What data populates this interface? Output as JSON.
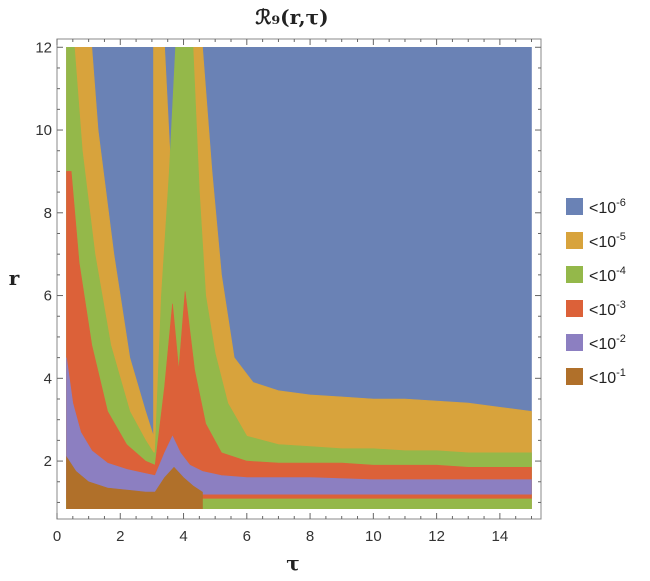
{
  "chart_data": {
    "type": "heatmap",
    "title": "ℛ₉(r,τ)",
    "xlabel": "τ",
    "ylabel": "r",
    "xlim": [
      0,
      15.3
    ],
    "ylim": [
      0.6,
      12.2
    ],
    "x_ticks": [
      0,
      2,
      4,
      6,
      8,
      10,
      12,
      14
    ],
    "y_ticks": [
      2,
      4,
      6,
      8,
      10,
      12
    ],
    "legend_position": "right",
    "legend": [
      {
        "base": "<10",
        "exp": "-6",
        "color": "#6a82b5"
      },
      {
        "base": "<10",
        "exp": "-5",
        "color": "#d8a33c"
      },
      {
        "base": "<10",
        "exp": "-4",
        "color": "#94b84a"
      },
      {
        "base": "<10",
        "exp": "-3",
        "color": "#dc6139"
      },
      {
        "base": "<10",
        "exp": "-2",
        "color": "#8c7fc1"
      },
      {
        "base": "<10",
        "exp": "-1",
        "color": "#b0702a"
      }
    ],
    "regions": [
      {
        "level": 0,
        "points": [
          [
            0.3,
            12
          ],
          [
            15,
            12
          ],
          [
            15,
            0.85
          ],
          [
            0.3,
            0.85
          ]
        ]
      },
      {
        "level": 1,
        "points": [
          [
            0.3,
            12
          ],
          [
            1.1,
            12
          ],
          [
            1.3,
            10
          ],
          [
            1.8,
            7
          ],
          [
            2.3,
            4.5
          ],
          [
            2.8,
            3.2
          ],
          [
            3.05,
            2.6
          ],
          [
            3.05,
            12
          ],
          [
            3.4,
            12
          ],
          [
            3.6,
            9
          ],
          [
            3.8,
            12
          ],
          [
            4.6,
            12
          ],
          [
            4.9,
            9
          ],
          [
            5.2,
            6.5
          ],
          [
            5.6,
            4.5
          ],
          [
            6.2,
            3.9
          ],
          [
            7,
            3.7
          ],
          [
            8,
            3.6
          ],
          [
            9,
            3.55
          ],
          [
            10,
            3.5
          ],
          [
            11,
            3.5
          ],
          [
            12,
            3.45
          ],
          [
            13,
            3.4
          ],
          [
            14,
            3.3
          ],
          [
            15,
            3.2
          ],
          [
            15,
            0.85
          ],
          [
            0.3,
            0.85
          ]
        ]
      },
      {
        "level": 2,
        "points": [
          [
            0.3,
            12
          ],
          [
            0.55,
            12
          ],
          [
            0.8,
            9.5
          ],
          [
            1.2,
            7
          ],
          [
            1.7,
            4.8
          ],
          [
            2.3,
            3.2
          ],
          [
            2.8,
            2.5
          ],
          [
            3.05,
            2.2
          ],
          [
            3.1,
            2.2
          ],
          [
            3.3,
            6
          ],
          [
            3.55,
            9
          ],
          [
            3.75,
            12
          ],
          [
            4.3,
            12
          ],
          [
            4.5,
            8.5
          ],
          [
            4.7,
            6
          ],
          [
            5,
            4.6
          ],
          [
            5.4,
            3.4
          ],
          [
            6,
            2.6
          ],
          [
            7,
            2.4
          ],
          [
            8,
            2.35
          ],
          [
            9,
            2.3
          ],
          [
            10,
            2.3
          ],
          [
            11,
            2.25
          ],
          [
            12,
            2.25
          ],
          [
            13,
            2.2
          ],
          [
            14,
            2.2
          ],
          [
            15,
            2.2
          ],
          [
            15,
            0.85
          ],
          [
            0.3,
            0.85
          ]
        ]
      },
      {
        "level": 3,
        "points": [
          [
            0.3,
            9
          ],
          [
            0.45,
            9
          ],
          [
            0.7,
            6.8
          ],
          [
            1.1,
            4.8
          ],
          [
            1.6,
            3.2
          ],
          [
            2.2,
            2.4
          ],
          [
            2.8,
            2
          ],
          [
            3.1,
            1.9
          ],
          [
            3.4,
            3.8
          ],
          [
            3.65,
            5.8
          ],
          [
            3.85,
            4.2
          ],
          [
            4.05,
            6.1
          ],
          [
            4.35,
            4.2
          ],
          [
            4.7,
            2.9
          ],
          [
            5.2,
            2.2
          ],
          [
            6,
            2
          ],
          [
            7,
            1.95
          ],
          [
            8,
            1.95
          ],
          [
            9,
            1.95
          ],
          [
            10,
            1.9
          ],
          [
            11,
            1.9
          ],
          [
            12,
            1.9
          ],
          [
            13,
            1.85
          ],
          [
            14,
            1.85
          ],
          [
            15,
            1.85
          ],
          [
            15,
            1.1
          ],
          [
            0.3,
            1.1
          ]
        ]
      },
      {
        "level": 4,
        "points": [
          [
            0.3,
            4.5
          ],
          [
            0.5,
            3.4
          ],
          [
            0.75,
            2.7
          ],
          [
            1.1,
            2.25
          ],
          [
            1.6,
            1.95
          ],
          [
            2.2,
            1.8
          ],
          [
            2.8,
            1.7
          ],
          [
            3.1,
            1.65
          ],
          [
            3.4,
            2.2
          ],
          [
            3.65,
            2.6
          ],
          [
            3.9,
            2.2
          ],
          [
            4.2,
            1.9
          ],
          [
            4.6,
            1.75
          ],
          [
            5.2,
            1.65
          ],
          [
            6,
            1.6
          ],
          [
            8,
            1.6
          ],
          [
            10,
            1.55
          ],
          [
            12,
            1.55
          ],
          [
            14,
            1.55
          ],
          [
            15,
            1.55
          ],
          [
            15,
            1.2
          ],
          [
            0.3,
            1.2
          ]
        ]
      },
      {
        "level": 5,
        "points": [
          [
            0.3,
            2.1
          ],
          [
            0.6,
            1.75
          ],
          [
            1,
            1.5
          ],
          [
            1.6,
            1.35
          ],
          [
            2.2,
            1.3
          ],
          [
            2.8,
            1.25
          ],
          [
            3.1,
            1.25
          ],
          [
            3.4,
            1.6
          ],
          [
            3.7,
            1.85
          ],
          [
            4,
            1.6
          ],
          [
            4.3,
            1.4
          ],
          [
            4.6,
            1.25
          ],
          [
            4.6,
            0.85
          ],
          [
            0.3,
            0.85
          ]
        ]
      }
    ]
  }
}
